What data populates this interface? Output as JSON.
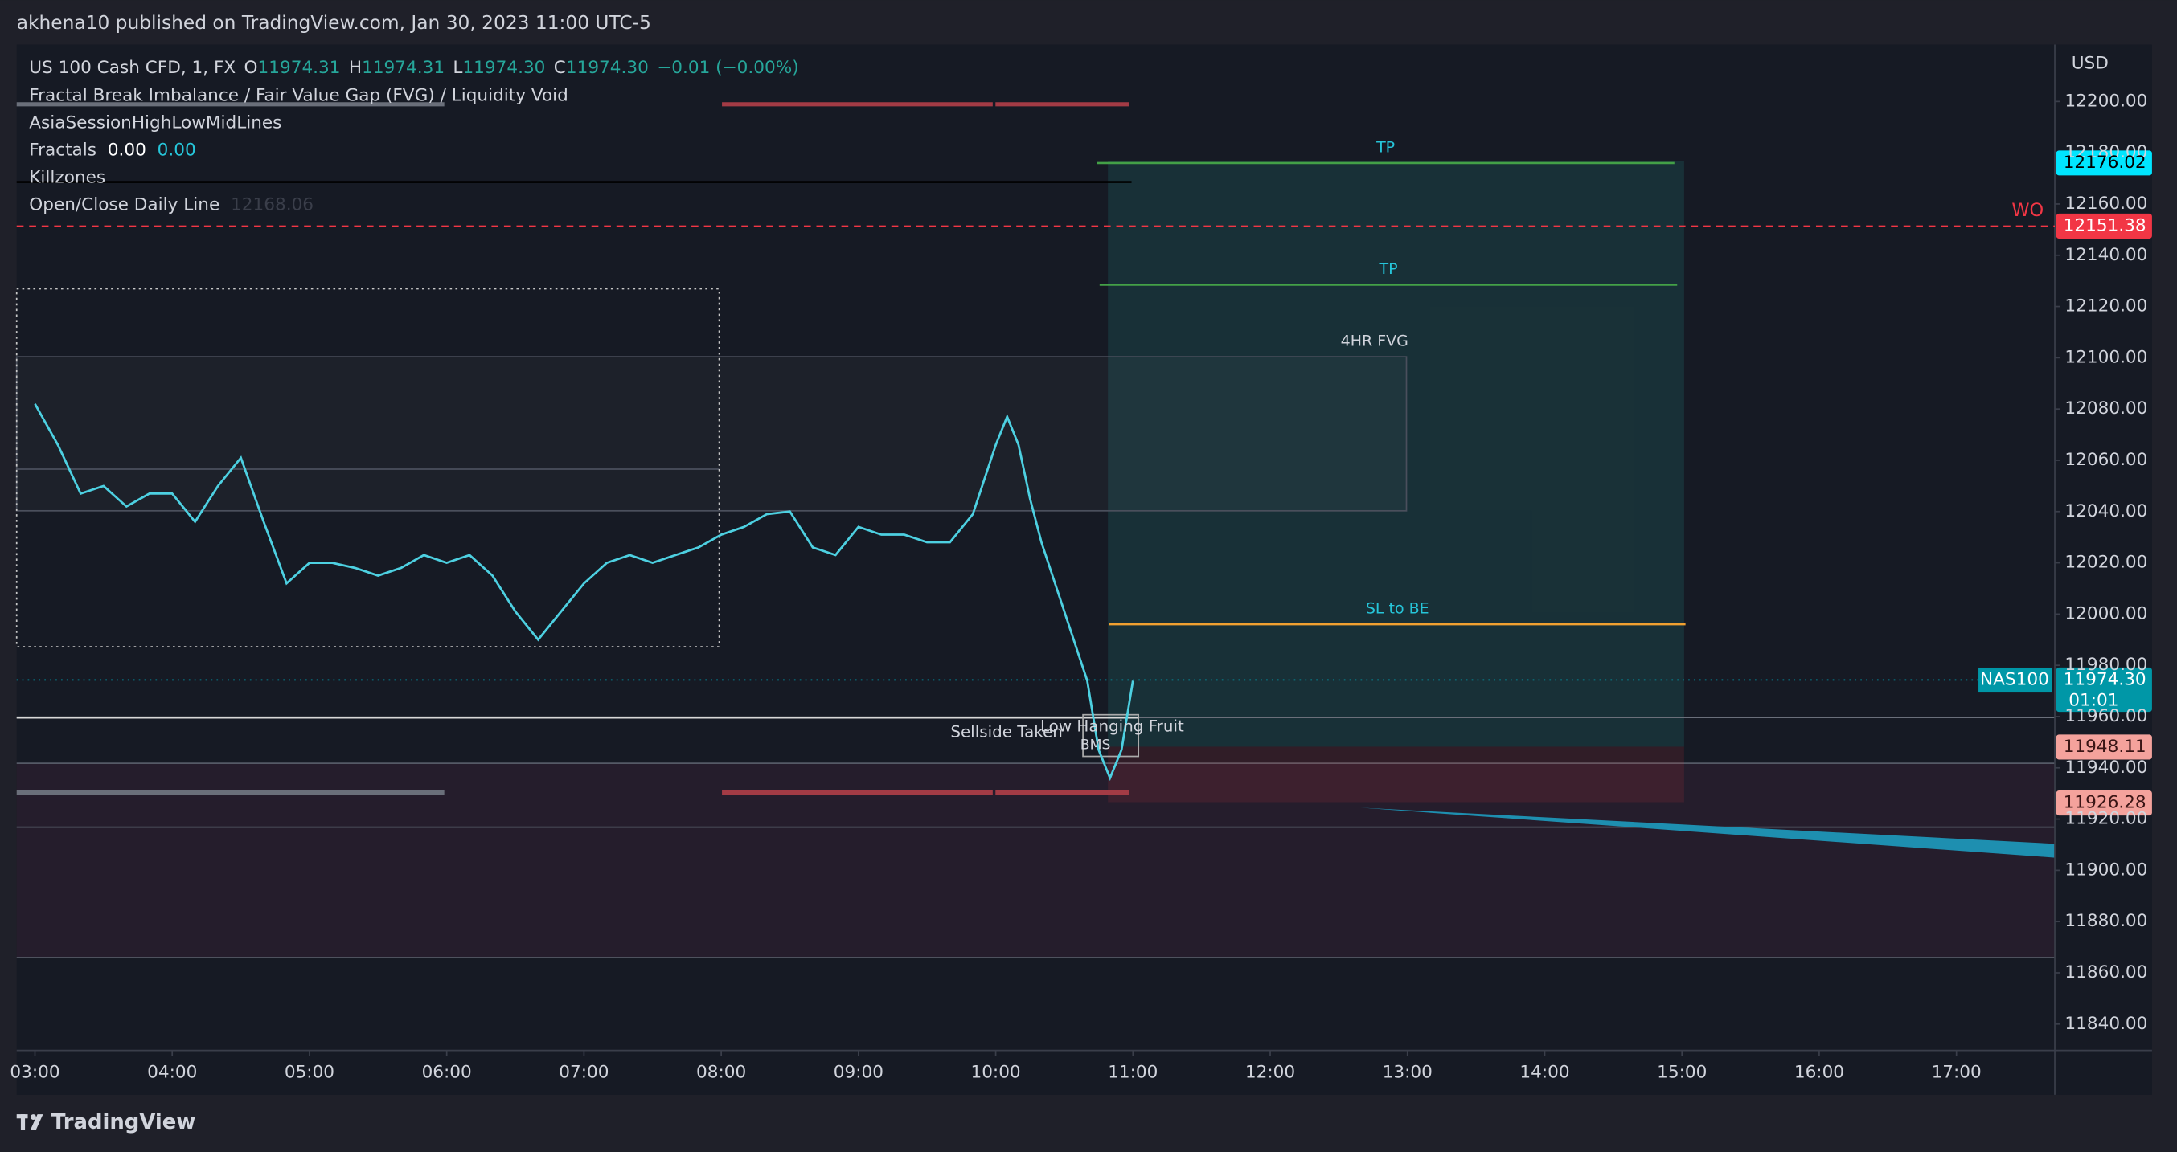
{
  "header": {
    "title": "akhena10 published on TradingView.com, Jan 30, 2023 11:00 UTC-5"
  },
  "legend": {
    "symbol": "US 100 Cash CFD, 1, FX",
    "open_key": "O",
    "open": "11974.31",
    "high_key": "H",
    "high": "11974.31",
    "low_key": "L",
    "low": "11974.30",
    "close_key": "C",
    "close": "11974.30",
    "change": "−0.01 (−0.00%)"
  },
  "indicators": [
    {
      "name": "Fractal Break Imbalance / Fair Value Gap (FVG) / Liquidity Void"
    },
    {
      "name": "AsiaSessionHighLowMidLines"
    },
    {
      "name": "Fractals",
      "value1": "0.00",
      "value2": "0.00"
    },
    {
      "name": "Killzones"
    },
    {
      "name": "Open/Close Daily Line",
      "value1": "12168.06"
    }
  ],
  "chart_data": {
    "type": "line",
    "currency": "USD",
    "color": "#4dd0e1",
    "x": [
      "03:00",
      "03:10",
      "03:20",
      "03:30",
      "03:40",
      "03:50",
      "04:00",
      "04:10",
      "04:20",
      "04:30",
      "04:40",
      "04:50",
      "05:00",
      "05:10",
      "05:20",
      "05:30",
      "05:40",
      "05:50",
      "06:00",
      "06:10",
      "06:20",
      "06:30",
      "06:40",
      "06:50",
      "07:00",
      "07:10",
      "07:20",
      "07:30",
      "07:40",
      "07:50",
      "08:00",
      "08:10",
      "08:20",
      "08:30",
      "08:40",
      "08:50",
      "09:00",
      "09:10",
      "09:20",
      "09:30",
      "09:40",
      "09:50",
      "10:00",
      "10:05",
      "10:10",
      "10:15",
      "10:20",
      "10:30",
      "10:40",
      "10:45",
      "10:50",
      "10:55",
      "11:00"
    ],
    "values": [
      12082,
      12066,
      12047,
      12050,
      12042,
      12047,
      12047,
      12036,
      12050,
      12061,
      12036,
      12012,
      12020,
      12020,
      12018,
      12015,
      12018,
      12023,
      12020,
      12023,
      12015,
      12001,
      11990,
      12001,
      12012,
      12020,
      12023,
      12020,
      12023,
      12026,
      12031,
      12034,
      12039,
      12040,
      12026,
      12023,
      12034,
      12031,
      12031,
      12028,
      12028,
      12039,
      12066,
      12077,
      12066,
      12045,
      12028,
      12001,
      11974,
      11947,
      11936,
      11947,
      11974
    ],
    "xlim": [
      "02:52",
      "17:43"
    ],
    "xticks": [
      "03:00",
      "04:00",
      "05:00",
      "06:00",
      "07:00",
      "08:00",
      "09:00",
      "10:00",
      "11:00",
      "12:00",
      "13:00",
      "14:00",
      "15:00",
      "16:00",
      "17:00"
    ],
    "ylim": [
      11829.7,
      12222.2
    ],
    "yticks": [
      {
        "value": 11840,
        "label": "11840.00"
      },
      {
        "value": 11860,
        "label": "11860.00"
      },
      {
        "value": 11880,
        "label": "11880.00"
      },
      {
        "value": 11900,
        "label": "11900.00"
      },
      {
        "value": 11920,
        "label": "11920.00"
      },
      {
        "value": 11940,
        "label": "11940.00"
      },
      {
        "value": 11960,
        "label": "11960.00"
      },
      {
        "value": 11980,
        "label": "11980.00"
      },
      {
        "value": 12000,
        "label": "12000.00"
      },
      {
        "value": 12020,
        "label": "12020.00"
      },
      {
        "value": 12040,
        "label": "12040.00"
      },
      {
        "value": 12060,
        "label": "12060.00"
      },
      {
        "value": 12080,
        "label": "12080.00"
      },
      {
        "value": 12100,
        "label": "12100.00"
      },
      {
        "value": 12120,
        "label": "12120.00"
      },
      {
        "value": 12140,
        "label": "12140.00"
      },
      {
        "value": 12160,
        "label": "12160.00"
      },
      {
        "value": 12180,
        "label": "12180.00"
      },
      {
        "value": 12200,
        "label": "12200.00"
      }
    ],
    "levels": [
      {
        "label": "TP",
        "price": 12176,
        "color": "#43a047",
        "label_color": "#26c6da"
      },
      {
        "label": "TP",
        "price": 12128.5,
        "color": "#43a047",
        "label_color": "#26c6da"
      },
      {
        "label": "SL to BE",
        "price": 11996,
        "color": "#f0a030",
        "label_color": "#26c6da"
      },
      {
        "label": "WO",
        "price": 12151.38,
        "color": "#f23645",
        "label_color": "#f23645"
      }
    ],
    "price_labels": [
      {
        "value": 12176.02,
        "color": "#00e5ff",
        "text_color": "#000000"
      },
      {
        "value": 12151.38,
        "color": "#f23645",
        "text_color": "#ffffff"
      },
      {
        "value": 11974.3,
        "label": "11974.30",
        "color": "#0097a7",
        "text_color": "#ffffff",
        "countdown": "01:01"
      },
      {
        "value": 11948.11,
        "color": "#f4a29c",
        "text_color": "#3a1515"
      },
      {
        "value": 11926.28,
        "color": "#f4a29c",
        "text_color": "#3a1515"
      }
    ],
    "symbol_tag": "NAS100",
    "annotations": {
      "fvg": "4HR FVG",
      "sellside": "Sellside Taken",
      "fruit": "Low Hanging Fruit",
      "bms": "BMS"
    }
  },
  "footer": {
    "brand": "TradingView"
  }
}
